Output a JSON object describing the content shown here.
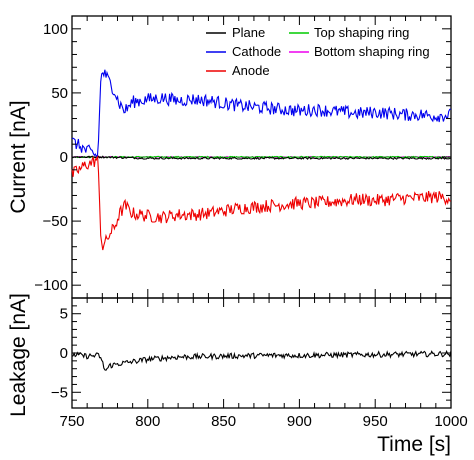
{
  "chart_data": [
    {
      "type": "line",
      "ylabel": "Current [nA]",
      "ylim": [
        -110,
        110
      ],
      "yticks": [
        -100,
        -50,
        0,
        50,
        100
      ],
      "xlim": [
        750,
        1000
      ],
      "legend": {
        "placement": "top-right",
        "columns": 2,
        "entries": [
          {
            "name": "Plane",
            "color": "#000000"
          },
          {
            "name": "Top shaping ring",
            "color": "#00cc00"
          },
          {
            "name": "Cathode",
            "color": "#0000ee"
          },
          {
            "name": "Bottom shaping ring",
            "color": "#ee00ee"
          },
          {
            "name": "Anode",
            "color": "#ee0000"
          }
        ]
      },
      "series": [
        {
          "name": "Cathode",
          "color": "#0000ee",
          "x": [
            750,
            753,
            756,
            759,
            762,
            765,
            767,
            768,
            769,
            770,
            772,
            775,
            778,
            781,
            785,
            790,
            800,
            810,
            820,
            830,
            840,
            850,
            860,
            870,
            880,
            890,
            900,
            910,
            920,
            930,
            940,
            950,
            960,
            970,
            980,
            990,
            1000
          ],
          "y": [
            12,
            10,
            8,
            5,
            4,
            2,
            0,
            30,
            60,
            67,
            64,
            58,
            52,
            42,
            36,
            43,
            45,
            46,
            44,
            45,
            44,
            42,
            40,
            39,
            38,
            37,
            36,
            37,
            36,
            35,
            34,
            35,
            34,
            33,
            33,
            32,
            33
          ],
          "noise": 5
        },
        {
          "name": "Anode",
          "color": "#ee0000",
          "x": [
            750,
            753,
            756,
            759,
            762,
            765,
            767,
            768,
            769,
            770,
            772,
            775,
            778,
            781,
            785,
            790,
            800,
            810,
            820,
            830,
            840,
            850,
            860,
            870,
            880,
            890,
            900,
            910,
            920,
            930,
            940,
            950,
            960,
            970,
            980,
            990,
            1000
          ],
          "y": [
            -14,
            -11,
            -9,
            -6,
            -5,
            -3,
            -1,
            -30,
            -60,
            -70,
            -67,
            -60,
            -55,
            -45,
            -38,
            -44,
            -46,
            -47,
            -45,
            -45,
            -44,
            -42,
            -40,
            -39,
            -38,
            -37,
            -36,
            -36,
            -35,
            -34,
            -33,
            -34,
            -33,
            -32,
            -32,
            -31,
            -32
          ],
          "noise": 5
        },
        {
          "name": "Plane",
          "color": "#000000",
          "x": [
            750,
            770,
            800,
            850,
            900,
            950,
            1000
          ],
          "y": [
            0,
            0,
            -1,
            -1,
            -1,
            -1,
            -1
          ],
          "noise": 0.7
        },
        {
          "name": "Top shaping ring",
          "color": "#00cc00",
          "x": [
            750,
            770,
            800,
            850,
            900,
            950,
            1000
          ],
          "y": [
            0,
            0,
            0,
            0,
            0,
            0,
            0
          ],
          "noise": 0.5
        },
        {
          "name": "Bottom shaping ring",
          "color": "#ee00ee",
          "x": [
            750,
            770,
            800,
            850,
            900,
            950,
            1000
          ],
          "y": [
            0,
            0,
            0,
            0,
            0,
            0,
            0
          ],
          "noise": 0.4
        }
      ]
    },
    {
      "type": "line",
      "xlabel": "Time [s]",
      "ylabel": "Leakage [nA]",
      "xlim": [
        750,
        1000
      ],
      "xticks": [
        750,
        800,
        850,
        900,
        950,
        1000
      ],
      "ylim": [
        -7,
        7
      ],
      "yticks": [
        -5,
        0,
        5
      ],
      "series": [
        {
          "name": "Leakage",
          "color": "#000000",
          "x": [
            750,
            760,
            768,
            770,
            772,
            775,
            780,
            790,
            800,
            820,
            850,
            880,
            900,
            950,
            1000
          ],
          "y": [
            -0.2,
            -0.4,
            -0.3,
            -1.2,
            -2.3,
            -1.6,
            -1.4,
            -1.1,
            -0.8,
            -0.5,
            -0.4,
            -0.3,
            -0.3,
            -0.2,
            -0.1
          ],
          "noise": 0.35
        }
      ]
    }
  ]
}
